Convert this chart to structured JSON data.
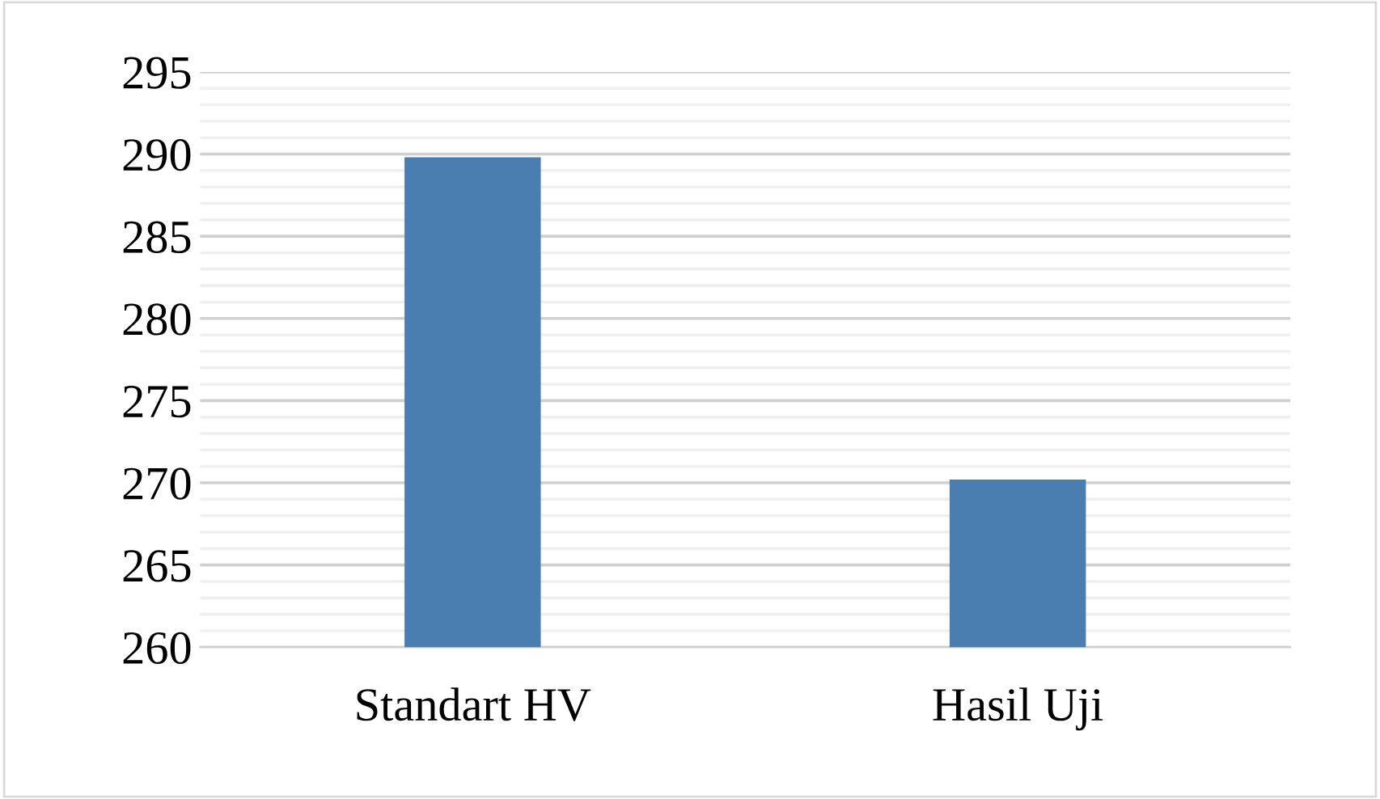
{
  "chart_data": {
    "type": "bar",
    "categories": [
      "Standart HV",
      "Hasil Uji"
    ],
    "values": [
      289.8,
      270.2
    ],
    "color": "#4a7eb0",
    "ylim": [
      260,
      295
    ],
    "yticks": [
      260,
      265,
      270,
      275,
      280,
      285,
      290,
      295
    ],
    "grid": "y"
  }
}
